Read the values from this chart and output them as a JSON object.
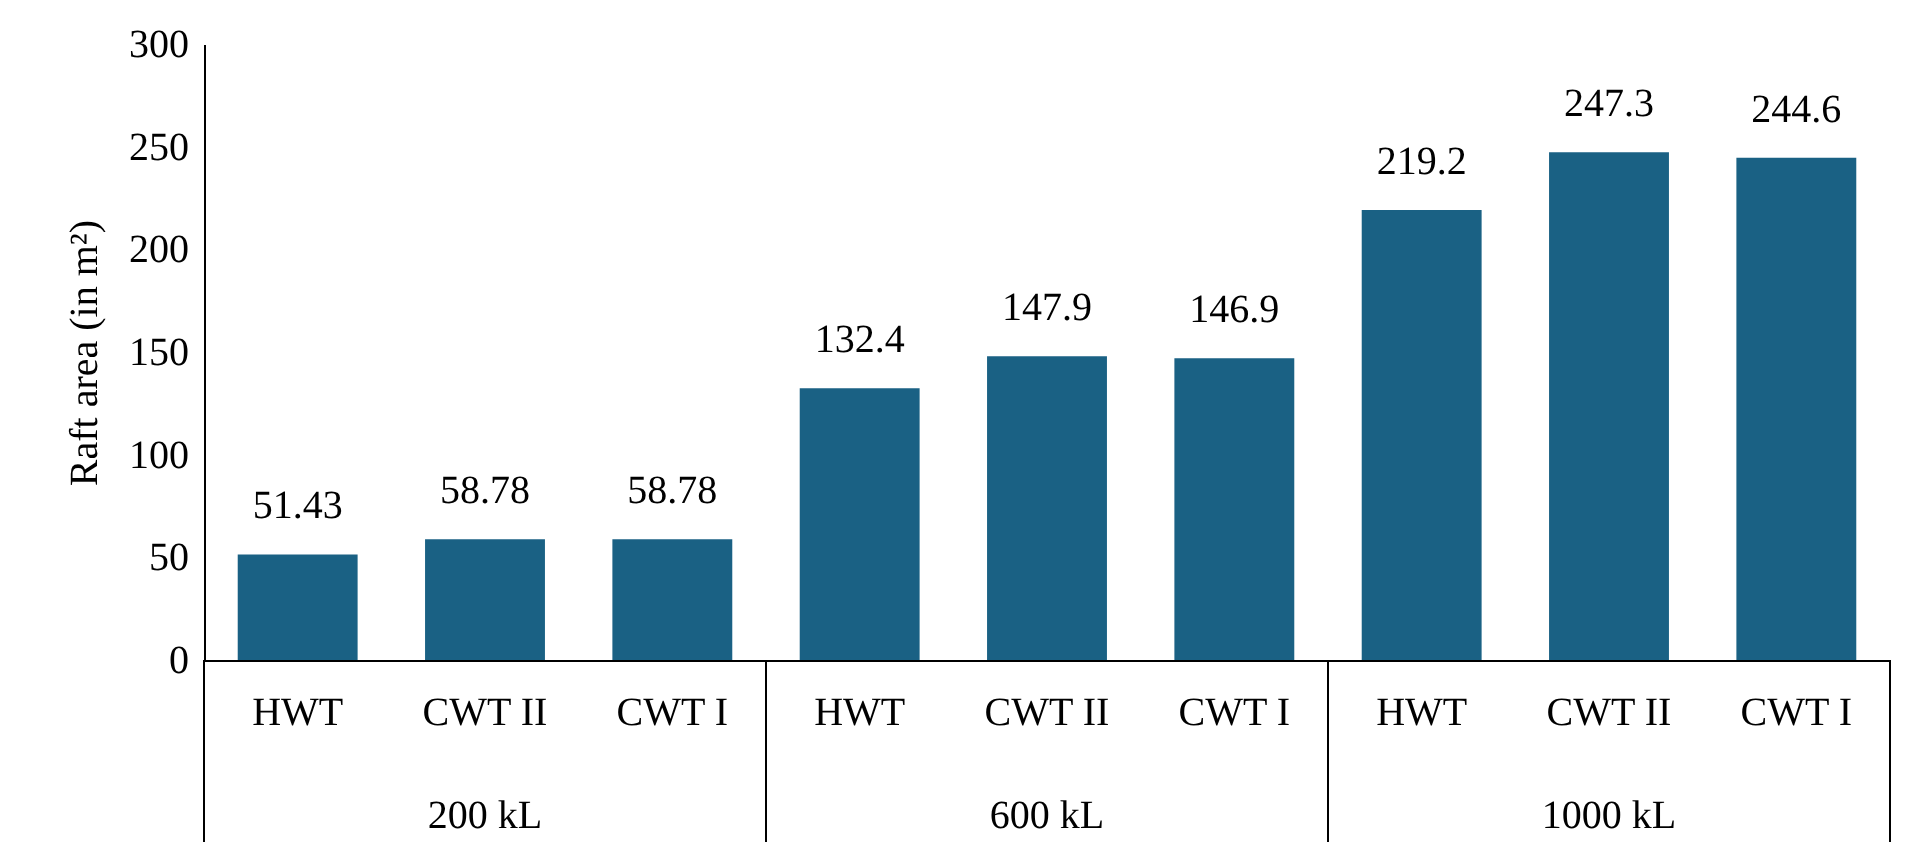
{
  "chart_data": {
    "type": "bar",
    "ylabel": "Raft area (in m²)",
    "categories": [
      "HWT",
      "CWT II",
      "CWT I",
      "HWT",
      "CWT II",
      "CWT I",
      "HWT",
      "CWT II",
      "CWT I"
    ],
    "values": [
      51.43,
      58.78,
      58.78,
      132.4,
      147.9,
      146.9,
      219.2,
      247.3,
      244.6
    ],
    "color": "#1a6184",
    "data_labels": true,
    "grid": false,
    "ylim": [
      0,
      300
    ],
    "yticks": [
      0,
      50,
      100,
      150,
      200,
      250,
      300
    ],
    "annotations": [
      "200 kL",
      "600 kL",
      "1000 kL"
    ]
  }
}
